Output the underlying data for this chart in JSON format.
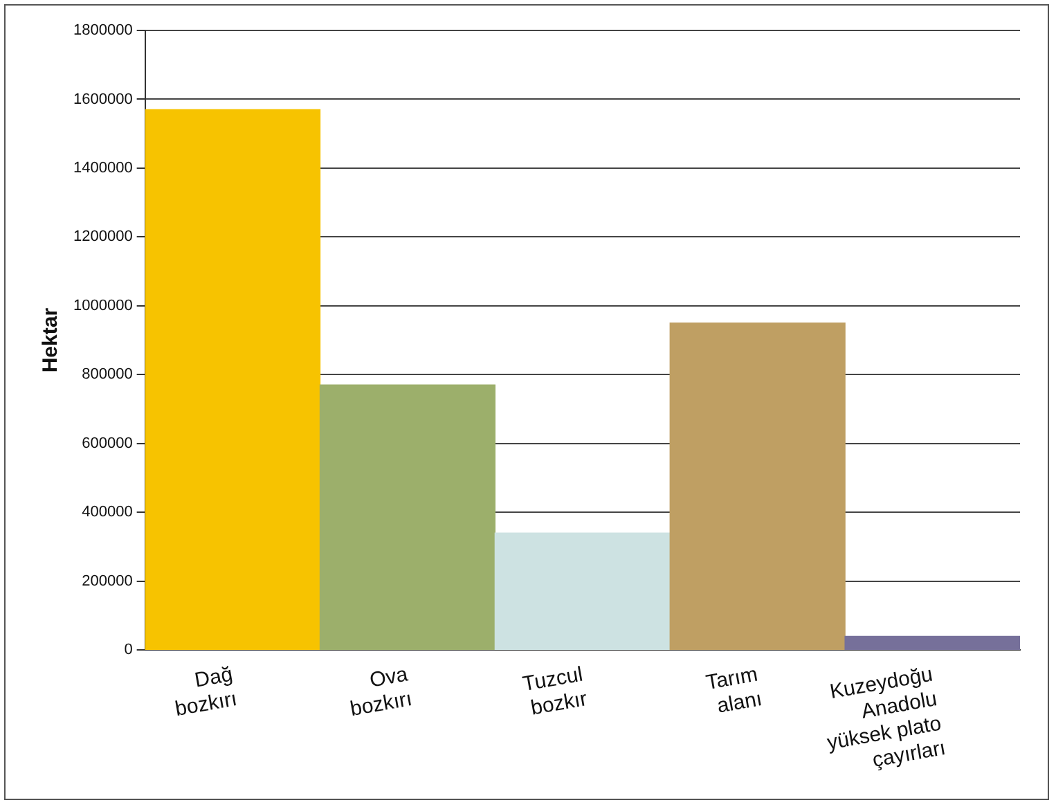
{
  "chart_data": {
    "type": "bar",
    "ylabel": "Hektar",
    "categories": [
      "Dağ\nbozkırı",
      "Ova\nbozkırı",
      "Tuzcul\nbozkır",
      "Tarım\nalanı",
      "Kuzeydoğu\nAnadolu\nyüksek plato\nçayırları"
    ],
    "values": [
      1570000,
      770000,
      340000,
      950000,
      40000
    ],
    "colors": [
      "#f7c300",
      "#9caf6b",
      "#cde2e2",
      "#bf9f63",
      "#76709a"
    ],
    "ylim": [
      0,
      1800000
    ],
    "yticks": [
      0,
      200000,
      400000,
      600000,
      800000,
      1000000,
      1200000,
      1400000,
      1600000,
      1800000
    ],
    "grid": "y",
    "legend": false
  }
}
